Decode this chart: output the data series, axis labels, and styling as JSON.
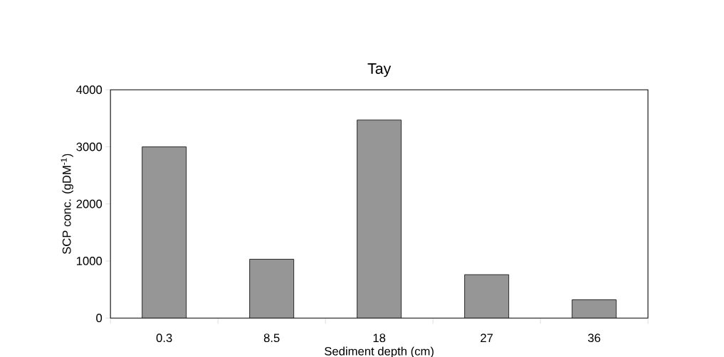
{
  "chart_data": {
    "type": "bar",
    "title": "Tay",
    "xlabel": "Sediment depth (cm)",
    "ylabel": "SCP conc. (gDM$^{-1}$)",
    "categories": [
      "0.3",
      "8.5",
      "18",
      "27",
      "36"
    ],
    "values": [
      3000,
      1030,
      3470,
      760,
      320
    ],
    "color": "#969696",
    "ylim": [
      0,
      4000
    ],
    "yticks": [
      0,
      1000,
      2000,
      3000,
      4000
    ]
  }
}
